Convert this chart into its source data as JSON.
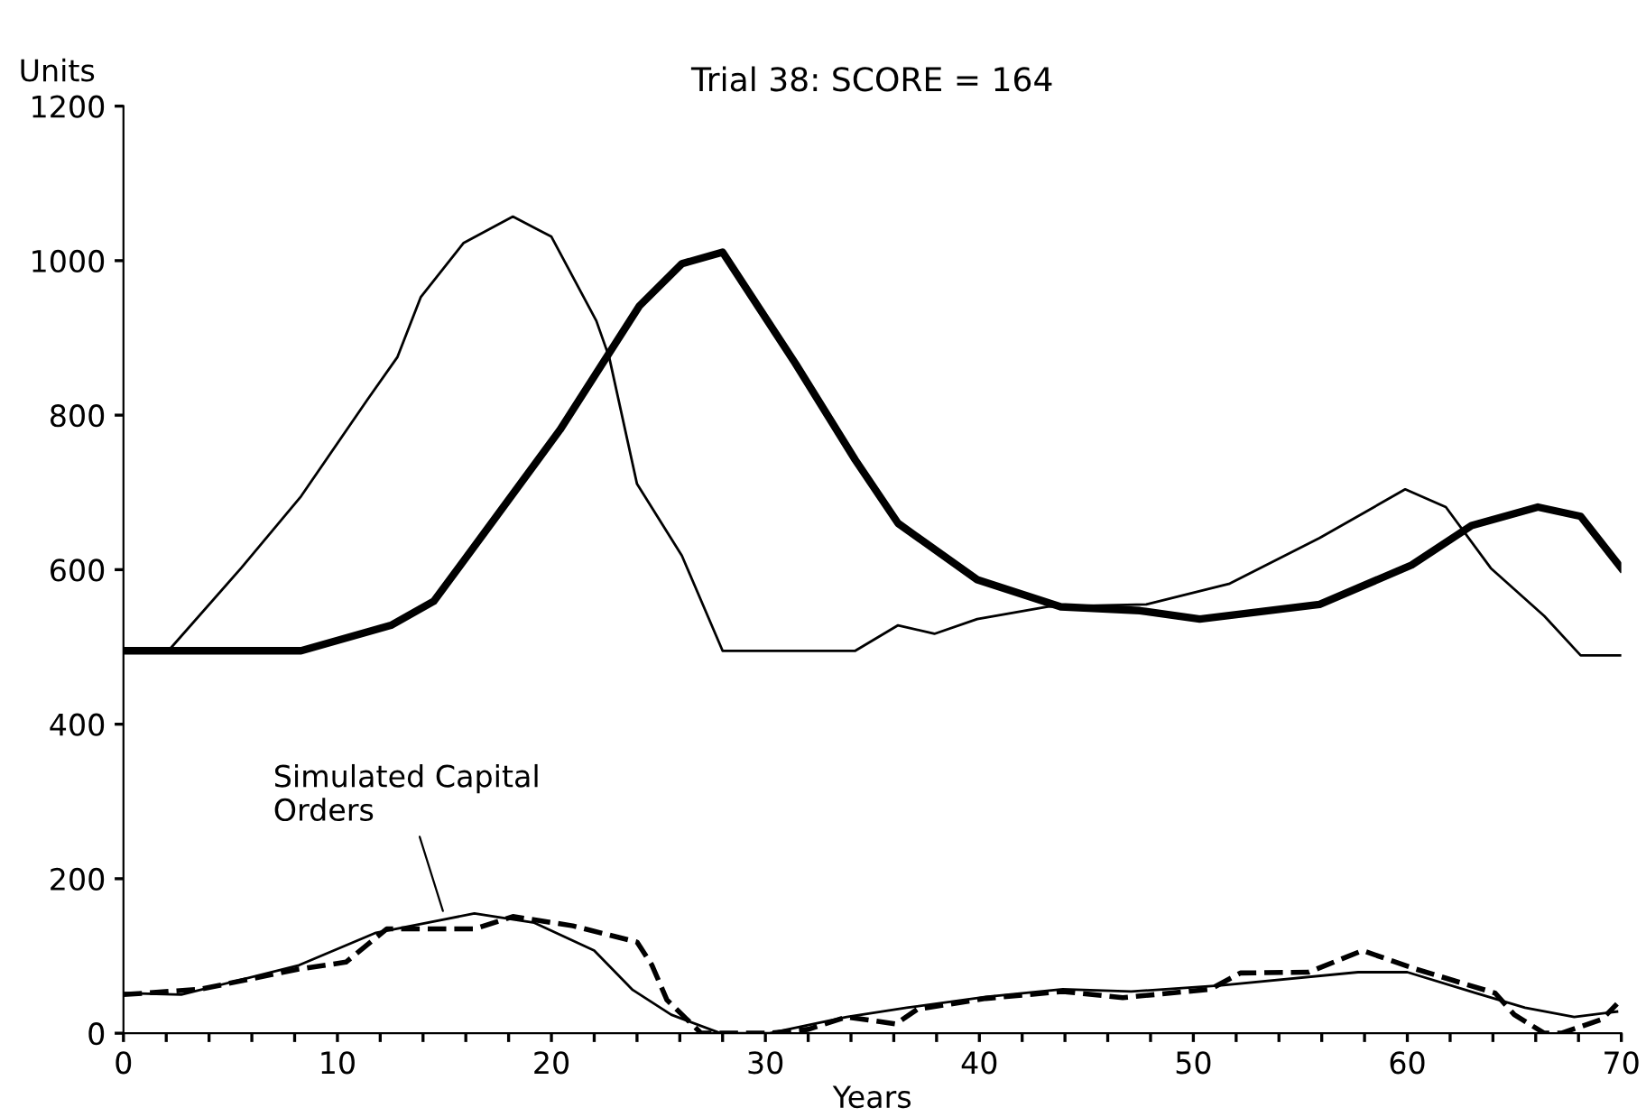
{
  "chart_data": {
    "type": "line",
    "title": "Trial 38: SCORE = 164",
    "xlabel": "Years",
    "ylabel": "Units",
    "xlim": [
      0,
      70
    ],
    "ylim": [
      0,
      1200
    ],
    "xticks": [
      0,
      {
        "value": 2,
        "label": null
      },
      {
        "value": 4,
        "label": null
      },
      {
        "value": 6,
        "label": null
      },
      {
        "value": 8,
        "label": null
      },
      10,
      {
        "value": 12,
        "label": null
      },
      {
        "value": 14,
        "label": null
      },
      {
        "value": 16,
        "label": null
      },
      {
        "value": 18,
        "label": null
      },
      20,
      {
        "value": 22,
        "label": null
      },
      {
        "value": 24,
        "label": null
      },
      {
        "value": 26,
        "label": null
      },
      {
        "value": 28,
        "label": null
      },
      30,
      {
        "value": 32,
        "label": null
      },
      {
        "value": 34,
        "label": null
      },
      {
        "value": 36,
        "label": null
      },
      {
        "value": 38,
        "label": null
      },
      40,
      {
        "value": 42,
        "label": null
      },
      {
        "value": 44,
        "label": null
      },
      {
        "value": 46,
        "label": null
      },
      {
        "value": 48,
        "label": null
      },
      50,
      {
        "value": 52,
        "label": null
      },
      {
        "value": 54,
        "label": null
      },
      {
        "value": 56,
        "label": null
      },
      {
        "value": 58,
        "label": null
      },
      60,
      {
        "value": 62,
        "label": null
      },
      {
        "value": 64,
        "label": null
      },
      {
        "value": 66,
        "label": null
      },
      {
        "value": 68,
        "label": null
      },
      70
    ],
    "yticks": [
      0,
      200,
      400,
      600,
      800,
      1000,
      1200
    ],
    "grid": false,
    "legend": false,
    "marker": "none",
    "annotations": [
      {
        "text": "Simulated Capital\nOrders",
        "x": 15,
        "y": 152
      }
    ],
    "series": [
      {
        "color": "#000000",
        "line_style": "solid",
        "x": [
          0,
          2.1,
          5.5,
          8.3,
          11.4,
          12.8,
          13.9,
          15.9,
          18.2,
          20.0,
          22.1,
          22.7,
          24.0,
          26.1,
          28.0,
          34.2,
          36.2,
          37.9,
          39.9,
          43.2,
          47.8,
          51.7,
          55.9,
          59.9,
          61.8,
          63.9,
          66.4,
          68.1,
          70
        ],
        "values": [
          495,
          495,
          602,
          695,
          820,
          875,
          953,
          1023,
          1057,
          1031,
          922,
          875,
          711,
          618,
          495,
          495,
          528,
          517,
          536,
          552,
          555,
          582,
          641,
          704,
          681,
          602,
          540,
          489,
          489
        ]
      },
      {
        "color": "#000000",
        "line_style": "solid",
        "x": [
          0,
          8.3,
          12.5,
          14.5,
          17.3,
          20.4,
          24.1,
          26.1,
          28.0,
          31.4,
          34.2,
          36.2,
          39.9,
          43.8,
          47.5,
          50.3,
          55.9,
          60.2,
          63.0,
          66.1,
          68.1,
          70
        ],
        "values": [
          495,
          495,
          528,
          559,
          664,
          781,
          941,
          996,
          1011,
          867,
          742,
          660,
          587,
          552,
          547,
          536,
          555,
          606,
          657,
          681,
          669,
          602
        ]
      },
      {
        "color": "#000000",
        "line_style": "solid",
        "x": [
          0,
          2.7,
          8.2,
          11.8,
          16.4,
          19.2,
          22.0,
          23.8,
          25.6,
          27.9,
          30.2,
          33.8,
          36.6,
          40.3,
          43.9,
          47.1,
          51.3,
          57.7,
          60.0,
          63.2,
          65.5,
          67.8,
          69.8
        ],
        "values": [
          52,
          50,
          88,
          130,
          155,
          143,
          107,
          56,
          24,
          0,
          0,
          21,
          33,
          47,
          57,
          54,
          62,
          79,
          79,
          52,
          33,
          21,
          28
        ]
      },
      {
        "color": "#000000",
        "line_style": "dashed",
        "x": [
          0,
          3.6,
          8.2,
          10.4,
          12.3,
          14.6,
          16.4,
          18.2,
          21.0,
          24.0,
          24.7,
          25.4,
          27.0,
          30.2,
          32.0,
          33.8,
          36.1,
          37.1,
          40.3,
          43.9,
          46.7,
          50.8,
          52.2,
          55.4,
          57.9,
          60.4,
          64.1,
          65.0,
          66.4,
          67.2,
          69.1,
          69.8
        ],
        "values": [
          50,
          57,
          83,
          92,
          135,
          135,
          135,
          151,
          139,
          118,
          88,
          43,
          0,
          0,
          5,
          21,
          12,
          31,
          45,
          54,
          46,
          57,
          78,
          79,
          107,
          83,
          52,
          24,
          0,
          0,
          18,
          38
        ]
      }
    ]
  }
}
